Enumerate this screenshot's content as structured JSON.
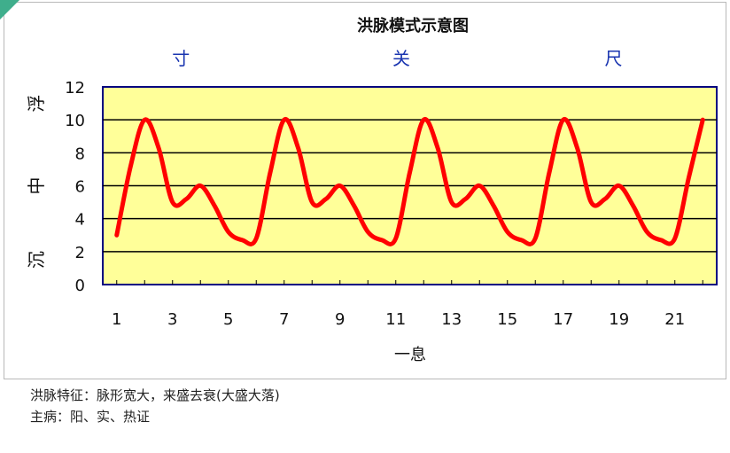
{
  "chart_data": {
    "type": "line",
    "title": "洪脉模式示意图",
    "section_labels": [
      "寸",
      "关",
      "尺"
    ],
    "xlabel": "一息",
    "ylabel_parts": [
      "浮",
      "中",
      "沉"
    ],
    "xlim": [
      0.5,
      22.5
    ],
    "ylim": [
      0,
      12
    ],
    "x_ticks": [
      1,
      3,
      5,
      7,
      9,
      11,
      13,
      15,
      17,
      19,
      21
    ],
    "y_ticks": [
      0,
      2,
      4,
      6,
      8,
      10,
      12
    ],
    "grid": true,
    "series": [
      {
        "color": "#ff0000",
        "x": [
          1,
          1.5,
          2,
          2.5,
          3,
          3.5,
          4,
          4.5,
          5,
          5.5,
          6,
          6.5,
          7,
          7.5,
          8,
          8.5,
          9,
          9.5,
          10,
          10.5,
          11,
          11.5,
          12,
          12.5,
          13,
          13.5,
          14,
          14.5,
          15,
          15.5,
          16,
          16.5,
          17,
          17.5,
          18,
          18.5,
          19,
          19.5,
          20,
          20.5,
          21,
          21.5,
          22
        ],
        "y": [
          3,
          7.2,
          10,
          8.3,
          5,
          5.2,
          6,
          4.8,
          3.2,
          2.7,
          2.8,
          6.8,
          10,
          8.3,
          5,
          5.2,
          6,
          4.8,
          3.2,
          2.7,
          2.8,
          6.8,
          10,
          8.3,
          5,
          5.2,
          6,
          4.8,
          3.2,
          2.7,
          2.8,
          6.8,
          10,
          8.3,
          5,
          5.2,
          6,
          4.8,
          3.2,
          2.7,
          2.8,
          6.5,
          10
        ]
      }
    ]
  },
  "captions": [
    "洪脉特征：脉形宽大，来盛去衰(大盛大落)",
    "主病：阳、实、热证"
  ],
  "colors": {
    "plot_background": "#ffff99",
    "frame": "#000080",
    "section_label": "#1a35b0",
    "line": "#ff0000",
    "corner_tag": "#3fae8c"
  }
}
